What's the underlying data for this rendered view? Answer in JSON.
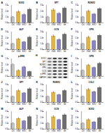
{
  "chart_data": [
    {
      "panel": "A",
      "type": "bar",
      "title": "SOX2",
      "ylabel": "Relative level",
      "categories": [
        "Ctrl",
        "OGD",
        "EXO",
        "Inh"
      ],
      "values": [
        1.0,
        1.9,
        1.4,
        2.3
      ],
      "errors": [
        0.1,
        0.2,
        0.15,
        0.2
      ],
      "colors": [
        "#c4c4c4",
        "#e0b24a",
        "#8a83c2",
        "#6e6e6e"
      ],
      "ylim": [
        0,
        3
      ],
      "yticks": [
        0,
        1,
        2,
        3
      ]
    },
    {
      "panel": "B",
      "type": "bar",
      "title": "SP7",
      "ylabel": "Relative level",
      "categories": [
        "Ctrl",
        "OGD",
        "EXO",
        "Inh"
      ],
      "values": [
        1.0,
        2.2,
        1.6,
        2.5
      ],
      "errors": [
        0.1,
        0.2,
        0.15,
        0.2
      ],
      "colors": [
        "#c4c4c4",
        "#e0b24a",
        "#8a83c2",
        "#6e6e6e"
      ],
      "ylim": [
        0,
        3
      ],
      "yticks": [
        0,
        1,
        2,
        3
      ]
    },
    {
      "panel": "C",
      "type": "bar",
      "title": "RUNX2",
      "ylabel": "Relative level",
      "categories": [
        "Ctrl",
        "OGD",
        "EXO",
        "Inh"
      ],
      "values": [
        1.0,
        2.0,
        1.5,
        2.4
      ],
      "errors": [
        0.1,
        0.2,
        0.1,
        0.2
      ],
      "colors": [
        "#c4c4c4",
        "#e0b24a",
        "#8a83c2",
        "#6e6e6e"
      ],
      "ylim": [
        0,
        3
      ],
      "yticks": [
        0,
        1,
        2,
        3
      ]
    },
    {
      "panel": "D",
      "type": "bar",
      "title": "ALP",
      "ylabel": "Relative level",
      "categories": [
        "Ctrl",
        "OGD",
        "EXO",
        "Inh"
      ],
      "values": [
        1.0,
        1.8,
        1.3,
        2.1
      ],
      "errors": [
        0.1,
        0.15,
        0.1,
        0.2
      ],
      "colors": [
        "#c4c4c4",
        "#e0b24a",
        "#8a83c2",
        "#6e6e6e"
      ],
      "ylim": [
        0,
        3
      ],
      "yticks": [
        0,
        1,
        2,
        3
      ]
    },
    {
      "panel": "E",
      "type": "bar",
      "title": "OCN",
      "ylabel": "Relative level",
      "categories": [
        "Ctrl",
        "OGD",
        "EXO",
        "Inh"
      ],
      "values": [
        1.0,
        2.3,
        1.7,
        2.6
      ],
      "errors": [
        0.1,
        0.2,
        0.15,
        0.2
      ],
      "colors": [
        "#c4c4c4",
        "#e0b24a",
        "#8a83c2",
        "#6e6e6e"
      ],
      "ylim": [
        0,
        3
      ],
      "yticks": [
        0,
        1,
        2,
        3
      ]
    },
    {
      "panel": "F",
      "type": "bar",
      "title": "OPN",
      "ylabel": "Relative level",
      "categories": [
        "Ctrl",
        "OGD",
        "EXO",
        "Inh"
      ],
      "values": [
        1.0,
        2.1,
        1.5,
        2.4
      ],
      "errors": [
        0.1,
        0.2,
        0.1,
        0.2
      ],
      "colors": [
        "#c4c4c4",
        "#e0b24a",
        "#8a83c2",
        "#6e6e6e"
      ],
      "ylim": [
        0,
        3
      ],
      "yticks": [
        0,
        1,
        2,
        3
      ]
    },
    {
      "panel": "G",
      "type": "bar",
      "title": "p-ERK",
      "ylabel": "Relative level",
      "categories": [
        "Ctrl",
        "OGD",
        "EXO",
        "Inh"
      ],
      "values": [
        1.0,
        0.5,
        0.8,
        0.4
      ],
      "errors": [
        0.08,
        0.06,
        0.07,
        0.05
      ],
      "colors": [
        "#c4c4c4",
        "#e0b24a",
        "#8a83c2",
        "#6e6e6e"
      ],
      "ylim": [
        0,
        1.5
      ],
      "yticks": [
        0,
        0.5,
        1,
        1.5
      ]
    },
    {
      "panel": "I",
      "type": "bar",
      "title": "OPN",
      "ylabel": "Relative level",
      "categories": [
        "Ctrl",
        "OGD",
        "EXO",
        "Inh"
      ],
      "values": [
        1.0,
        1.9,
        1.5,
        2.2
      ],
      "errors": [
        0.1,
        0.15,
        0.1,
        0.2
      ],
      "colors": [
        "#c4c4c4",
        "#e0b24a",
        "#8a83c2",
        "#6e6e6e"
      ],
      "ylim": [
        0,
        3
      ],
      "yticks": [
        0,
        1,
        2,
        3
      ]
    },
    {
      "panel": "J",
      "type": "bar",
      "title": "SP7",
      "ylabel": "Relative level",
      "categories": [
        "Ctrl",
        "OGD",
        "EXO",
        "Inh"
      ],
      "values": [
        1.0,
        2.0,
        1.6,
        2.3
      ],
      "errors": [
        0.1,
        0.2,
        0.1,
        0.2
      ],
      "colors": [
        "#c4c4c4",
        "#e0b24a",
        "#8a83c2",
        "#6e6e6e"
      ],
      "ylim": [
        0,
        3
      ],
      "yticks": [
        0,
        1,
        2,
        3
      ]
    },
    {
      "panel": "K",
      "type": "bar",
      "title": "RUNX2",
      "ylabel": "Relative level",
      "categories": [
        "Ctrl",
        "OGD",
        "EXO",
        "Inh"
      ],
      "values": [
        1.0,
        1.7,
        1.3,
        2.0
      ],
      "errors": [
        0.1,
        0.15,
        0.1,
        0.15
      ],
      "colors": [
        "#c4c4c4",
        "#e0b24a",
        "#8a83c2",
        "#6e6e6e"
      ],
      "ylim": [
        0,
        3
      ],
      "yticks": [
        0,
        1,
        2,
        3
      ]
    },
    {
      "panel": "L",
      "type": "bar",
      "title": "COL1",
      "ylabel": "Relative level",
      "categories": [
        "Ctrl",
        "OGD",
        "EXO",
        "Inh"
      ],
      "values": [
        1.0,
        2.2,
        1.8,
        2.5
      ],
      "errors": [
        0.1,
        0.2,
        0.15,
        0.2
      ],
      "colors": [
        "#c4c4c4",
        "#e0b24a",
        "#8a83c2",
        "#6e6e6e"
      ],
      "ylim": [
        0,
        3
      ],
      "yticks": [
        0,
        1,
        2,
        3
      ]
    },
    {
      "panel": "M",
      "type": "bar",
      "title": "ALP",
      "ylabel": "Relative level",
      "categories": [
        "Ctrl",
        "OGD",
        "EXO",
        "Inh"
      ],
      "values": [
        1.0,
        1.8,
        1.4,
        2.1
      ],
      "errors": [
        0.1,
        0.15,
        0.1,
        0.2
      ],
      "colors": [
        "#c4c4c4",
        "#e0b24a",
        "#8a83c2",
        "#6e6e6e"
      ],
      "ylim": [
        0,
        3
      ],
      "yticks": [
        0,
        1,
        2,
        3
      ]
    },
    {
      "panel": "N",
      "type": "bar",
      "title": "OCN",
      "ylabel": "Relative level",
      "categories": [
        "Ctrl",
        "OGD",
        "EXO",
        "Inh"
      ],
      "values": [
        1.0,
        2.1,
        1.6,
        2.4
      ],
      "errors": [
        0.1,
        0.2,
        0.1,
        0.2
      ],
      "colors": [
        "#c4c4c4",
        "#e0b24a",
        "#8a83c2",
        "#6e6e6e"
      ],
      "ylim": [
        0,
        3
      ],
      "yticks": [
        0,
        1,
        2,
        3
      ]
    },
    {
      "panel": "O",
      "type": "bar",
      "title": "SOX2",
      "ylabel": "Relative level",
      "categories": [
        "Ctrl",
        "OGD",
        "EXO",
        "Inh"
      ],
      "values": [
        1.0,
        1.6,
        1.2,
        1.9
      ],
      "errors": [
        0.1,
        0.15,
        0.1,
        0.15
      ],
      "colors": [
        "#c4c4c4",
        "#e0b24a",
        "#8a83c2",
        "#6e6e6e"
      ],
      "ylim": [
        0,
        3
      ],
      "yticks": [
        0,
        1,
        2,
        3
      ]
    }
  ],
  "blot": {
    "panel": "H",
    "rows": [
      "SOX2",
      "SP7",
      "RUNX2",
      "OPN",
      "OCN",
      "p-ERK",
      "GAPDH"
    ]
  }
}
